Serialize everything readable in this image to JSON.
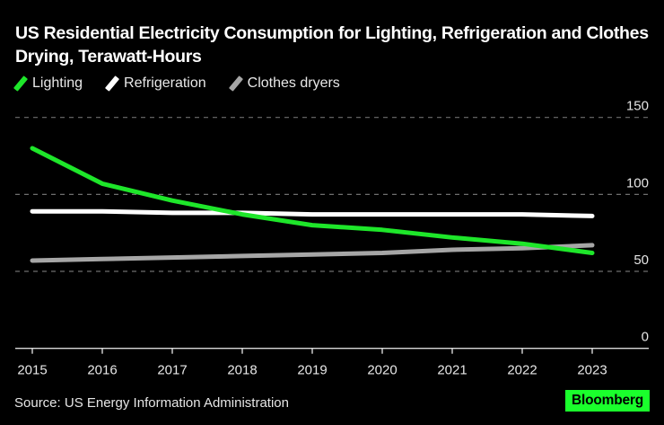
{
  "chart_data": {
    "type": "line",
    "title": "US Residential Electricity Consumption for Lighting, Refrigeration and Clothes Drying, Terawatt-Hours",
    "xlabel": "",
    "ylabel": "",
    "x": [
      "2015",
      "2016",
      "2017",
      "2018",
      "2019",
      "2020",
      "2021",
      "2022",
      "2023"
    ],
    "ylim": [
      0,
      150
    ],
    "yticks": [
      0,
      50,
      100,
      150
    ],
    "ytick_labels": [
      "0",
      "50",
      "100",
      "150"
    ],
    "grid": true,
    "legend_position": "top-left",
    "y_axis_side": "right",
    "series": [
      {
        "name": "Lighting",
        "color": "#1ee62a",
        "values": [
          130,
          107,
          96,
          87,
          80,
          77,
          72,
          68,
          62
        ]
      },
      {
        "name": "Refrigeration",
        "color": "#ffffff",
        "values": [
          89,
          89,
          88,
          88,
          87,
          87,
          87,
          87,
          86
        ]
      },
      {
        "name": "Clothes dryers",
        "color": "#a6a6a6",
        "values": [
          57,
          58,
          59,
          60,
          61,
          62,
          64,
          65,
          67
        ]
      }
    ]
  },
  "footer": {
    "source": "Source: US Energy Information Administration",
    "brand": "Bloomberg",
    "brand_color": "#1aff2c"
  }
}
